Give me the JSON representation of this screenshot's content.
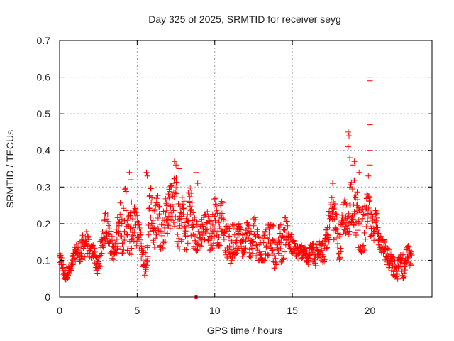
{
  "chart_data": {
    "type": "scatter",
    "title": "Day 325 of 2025, SRMTID for receiver seyg",
    "xlabel": "GPS time / hours",
    "ylabel": "SRMTID / TECUs",
    "xlim": [
      0,
      24
    ],
    "ylim": [
      0,
      0.7
    ],
    "xticks": [
      0,
      5,
      10,
      15,
      20
    ],
    "xtick_labels": [
      "0",
      "5",
      "10",
      "15",
      "20"
    ],
    "yticks": [
      0,
      0.1,
      0.2,
      0.3,
      0.4,
      0.5,
      0.6,
      0.7
    ],
    "ytick_labels": [
      "0",
      "0.1",
      "0.2",
      "0.3",
      "0.4",
      "0.5",
      "0.6",
      "0.7"
    ],
    "grid": true,
    "marker": "plus",
    "color": "#ff0000",
    "series": [
      {
        "name": "SRMTID",
        "envelope_note": "dense samples; each entry [time_hours, low, high] gives the observed value range around that time",
        "envelope": [
          [
            0.0,
            0.08,
            0.12
          ],
          [
            0.3,
            0.05,
            0.09
          ],
          [
            0.7,
            0.04,
            0.08
          ],
          [
            1.0,
            0.09,
            0.14
          ],
          [
            1.5,
            0.1,
            0.2
          ],
          [
            2.0,
            0.11,
            0.15
          ],
          [
            2.5,
            0.06,
            0.12
          ],
          [
            3.0,
            0.12,
            0.24
          ],
          [
            3.5,
            0.1,
            0.16
          ],
          [
            4.0,
            0.12,
            0.29
          ],
          [
            4.5,
            0.12,
            0.3
          ],
          [
            5.0,
            0.1,
            0.22
          ],
          [
            5.5,
            0.05,
            0.12
          ],
          [
            5.8,
            0.14,
            0.3
          ],
          [
            6.5,
            0.13,
            0.27
          ],
          [
            7.0,
            0.14,
            0.29
          ],
          [
            7.5,
            0.14,
            0.33
          ],
          [
            8.0,
            0.12,
            0.26
          ],
          [
            8.5,
            0.14,
            0.31
          ],
          [
            9.0,
            0.12,
            0.21
          ],
          [
            9.5,
            0.12,
            0.23
          ],
          [
            10.0,
            0.14,
            0.27
          ],
          [
            10.5,
            0.14,
            0.26
          ],
          [
            11.0,
            0.09,
            0.22
          ],
          [
            11.5,
            0.1,
            0.2
          ],
          [
            12.0,
            0.12,
            0.2
          ],
          [
            12.5,
            0.1,
            0.22
          ],
          [
            13.0,
            0.1,
            0.2
          ],
          [
            13.5,
            0.1,
            0.2
          ],
          [
            14.0,
            0.07,
            0.19
          ],
          [
            14.5,
            0.11,
            0.22
          ],
          [
            15.0,
            0.12,
            0.18
          ],
          [
            15.5,
            0.1,
            0.15
          ],
          [
            16.0,
            0.09,
            0.13
          ],
          [
            16.5,
            0.08,
            0.17
          ],
          [
            17.0,
            0.09,
            0.16
          ],
          [
            17.5,
            0.18,
            0.31
          ],
          [
            18.0,
            0.1,
            0.19
          ],
          [
            18.5,
            0.16,
            0.3
          ],
          [
            19.0,
            0.15,
            0.32
          ],
          [
            19.5,
            0.12,
            0.3
          ],
          [
            20.0,
            0.15,
            0.27
          ],
          [
            20.5,
            0.15,
            0.22
          ],
          [
            21.0,
            0.07,
            0.14
          ],
          [
            21.5,
            0.06,
            0.12
          ],
          [
            22.0,
            0.04,
            0.12
          ],
          [
            22.5,
            0.08,
            0.14
          ],
          [
            22.7,
            0.09,
            0.14
          ]
        ],
        "spikes": [
          [
            4.5,
            0.34
          ],
          [
            4.6,
            0.32
          ],
          [
            5.6,
            0.34
          ],
          [
            5.65,
            0.33
          ],
          [
            7.4,
            0.37
          ],
          [
            7.5,
            0.36
          ],
          [
            7.7,
            0.35
          ],
          [
            8.8,
            0.34
          ],
          [
            8.9,
            0.31
          ],
          [
            17.6,
            0.31
          ],
          [
            18.6,
            0.45
          ],
          [
            18.65,
            0.44
          ],
          [
            18.6,
            0.41
          ],
          [
            18.7,
            0.38
          ],
          [
            18.9,
            0.36
          ],
          [
            19.0,
            0.37
          ],
          [
            19.3,
            0.34
          ],
          [
            19.9,
            0.33
          ],
          [
            20.0,
            0.36
          ],
          [
            20.0,
            0.4
          ],
          [
            20.0,
            0.47
          ],
          [
            20.0,
            0.54
          ],
          [
            20.0,
            0.59
          ],
          [
            20.0,
            0.6
          ]
        ],
        "outliers": [
          [
            8.8,
            0.0
          ]
        ]
      }
    ]
  }
}
